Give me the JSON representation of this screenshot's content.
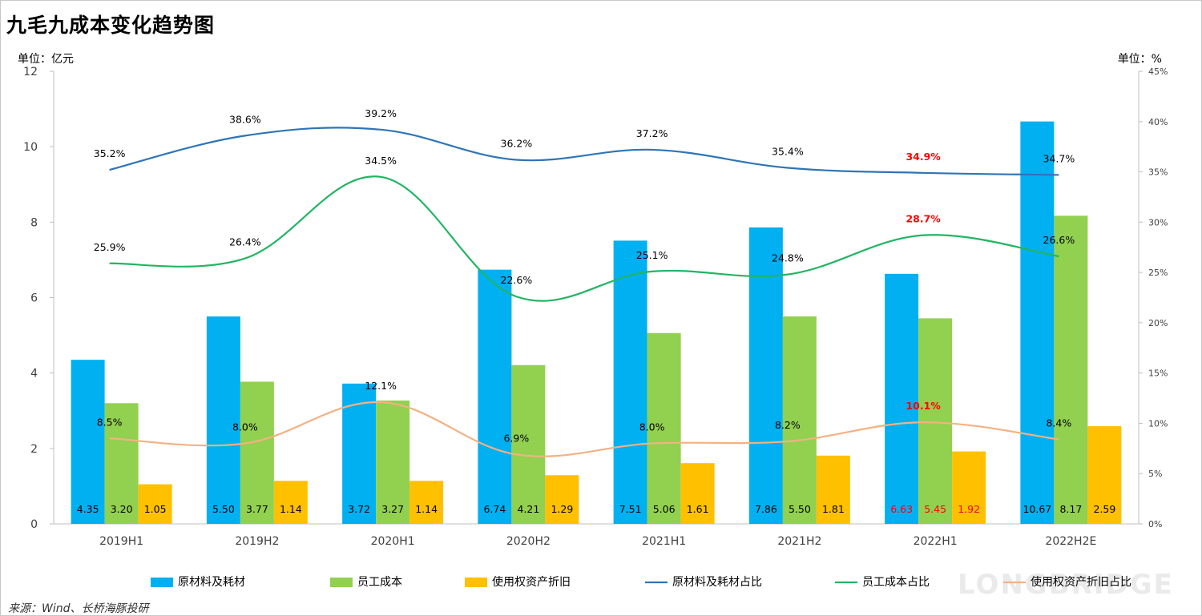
{
  "title": "九毛九成本变化趋势图",
  "unit_left": "单位：亿元",
  "unit_right": "单位：%",
  "source": "来源：Wind、长桥海豚投研",
  "watermark": "LONGBRIDGE",
  "colors": {
    "raw": "#00B0F0",
    "staff": "#92D050",
    "rou": "#FFC000",
    "raw_line": "#2E75B6",
    "staff_line": "#21B563",
    "rou_line": "#F4B183",
    "highlight": "#FF0000"
  },
  "chart_data": {
    "type": "bar",
    "categories": [
      "2019H1",
      "2019H2",
      "2020H1",
      "2020H2",
      "2021H1",
      "2021H2",
      "2022H1",
      "2022H2E"
    ],
    "ylim": [
      0,
      12
    ],
    "y2lim": [
      0,
      45
    ],
    "yticks": [
      "0",
      "2",
      "4",
      "6",
      "8",
      "10",
      "12"
    ],
    "y2ticks": [
      "0%",
      "5%",
      "10%",
      "15%",
      "20%",
      "25%",
      "30%",
      "35%",
      "40%",
      "45%"
    ],
    "bar_series": [
      {
        "name": "原材料及耗材",
        "values": [
          4.35,
          5.5,
          3.72,
          6.74,
          7.51,
          7.86,
          6.63,
          10.67
        ],
        "labels": [
          "4.35",
          "5.50",
          "3.72",
          "6.74",
          "7.51",
          "7.86",
          "6.63",
          "10.67"
        ]
      },
      {
        "name": "员工成本",
        "values": [
          3.2,
          3.77,
          3.27,
          4.21,
          5.06,
          5.5,
          5.45,
          8.17
        ],
        "labels": [
          "3.20",
          "3.77",
          "3.27",
          "4.21",
          "5.06",
          "5.50",
          "5.45",
          "8.17"
        ]
      },
      {
        "name": "使用权资产折旧",
        "values": [
          1.05,
          1.14,
          1.14,
          1.29,
          1.61,
          1.81,
          1.92,
          2.59
        ],
        "labels": [
          "1.05",
          "1.14",
          "1.14",
          "1.29",
          "1.61",
          "1.81",
          "1.92",
          "2.59"
        ]
      }
    ],
    "line_series": [
      {
        "name": "原材料及耗材占比",
        "values": [
          35.2,
          38.6,
          39.2,
          36.2,
          37.2,
          35.4,
          34.9,
          34.7
        ],
        "labels": [
          "35.2%",
          "38.6%",
          "39.2%",
          "36.2%",
          "37.2%",
          "35.4%",
          "34.9%",
          "34.7%"
        ]
      },
      {
        "name": "员工成本占比",
        "values": [
          25.9,
          26.4,
          34.5,
          22.6,
          25.1,
          24.8,
          28.7,
          26.6
        ],
        "labels": [
          "25.9%",
          "26.4%",
          "34.5%",
          "22.6%",
          "25.1%",
          "24.8%",
          "28.7%",
          "26.6%"
        ]
      },
      {
        "name": "使用权资产折旧占比",
        "values": [
          8.5,
          8.0,
          12.1,
          6.9,
          8.0,
          8.2,
          10.1,
          8.4
        ],
        "labels": [
          "8.5%",
          "8.0%",
          "12.1%",
          "6.9%",
          "8.0%",
          "8.2%",
          "10.1%",
          "8.4%"
        ]
      }
    ],
    "highlight_index": 6
  }
}
